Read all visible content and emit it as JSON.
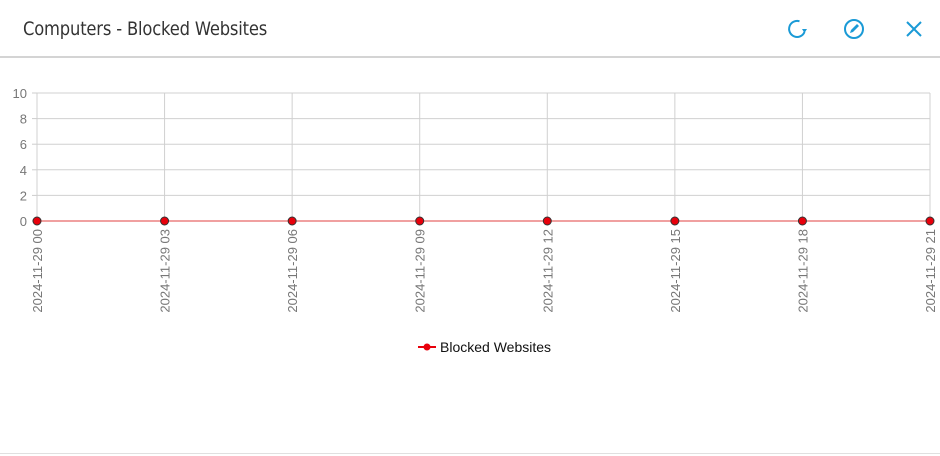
{
  "header": {
    "title": "Computers - Blocked Websites",
    "icons": [
      "refresh-icon",
      "edit-icon",
      "close-icon"
    ],
    "icon_color": "#1a9ad6"
  },
  "chart_data": {
    "type": "line",
    "title": "",
    "xlabel": "",
    "ylabel": "",
    "x": [
      "2024-11-29 00",
      "2024-11-29 03",
      "2024-11-29 06",
      "2024-11-29 09",
      "2024-11-29 12",
      "2024-11-29 15",
      "2024-11-29 18",
      "2024-11-29 21"
    ],
    "series": [
      {
        "name": "Blocked Websites",
        "values": [
          0,
          0,
          0,
          0,
          0,
          0,
          0,
          0
        ],
        "color": "#e8000b",
        "line_color": "#f0a0a0"
      }
    ],
    "ylim": [
      0,
      10
    ],
    "yticks": [
      0,
      2,
      4,
      6,
      8,
      10
    ],
    "grid": true,
    "legend": "bottom-center"
  }
}
